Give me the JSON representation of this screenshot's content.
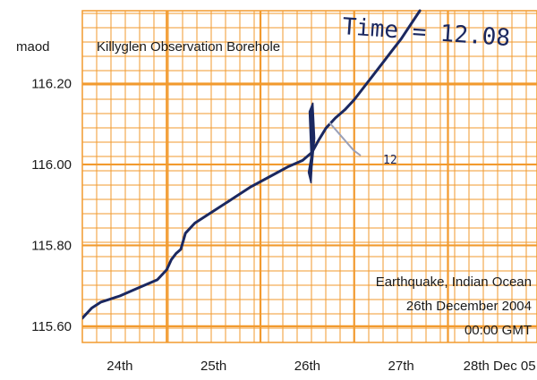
{
  "chart_data": {
    "type": "line",
    "title": "Killyglen Observation Borehole",
    "ylabel": "maod",
    "xlabel": "",
    "x_tick_labels": [
      "24th",
      "25th",
      "26th",
      "27th",
      "28th Dec 05"
    ],
    "y_tick_labels": [
      "116.20",
      "116.00",
      "115.80",
      "115.60"
    ],
    "y_tick_values": [
      116.2,
      116.0,
      115.8,
      115.6
    ],
    "xlim": [
      23.6,
      28.45
    ],
    "ylim": [
      115.56,
      116.38
    ],
    "grid": true,
    "series": [
      {
        "x": [
          23.6,
          23.7,
          23.8,
          24.0,
          24.2,
          24.4,
          24.5,
          24.55,
          24.6,
          24.65,
          24.7,
          24.8,
          25.0,
          25.2,
          25.4,
          25.6,
          25.8,
          25.95,
          26.05,
          26.12,
          26.2,
          26.3,
          26.4,
          26.5,
          26.6,
          26.7,
          26.8,
          26.9,
          27.0,
          27.2
        ],
        "y": [
          115.62,
          115.645,
          115.66,
          115.675,
          115.695,
          115.715,
          115.74,
          115.765,
          115.78,
          115.79,
          115.83,
          115.855,
          115.885,
          115.915,
          115.945,
          115.97,
          115.995,
          116.01,
          116.03,
          116.06,
          116.09,
          116.115,
          116.135,
          116.16,
          116.19,
          116.22,
          116.25,
          116.28,
          116.31,
          116.38
        ]
      }
    ],
    "annotations": [
      {
        "text": "Earthquake, Indian Ocean"
      },
      {
        "text": "26th December 2004"
      },
      {
        "text": "00:00 GMT"
      }
    ],
    "handwritten": {
      "time_label": "Time = 12.08",
      "mark": "12"
    },
    "colors": {
      "grid": "#f29a2e",
      "series": "#1b2860"
    }
  }
}
